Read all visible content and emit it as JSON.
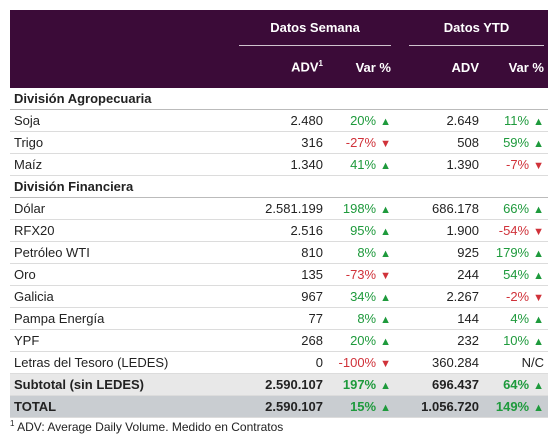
{
  "header": {
    "groups": [
      "Datos Semana",
      "Datos YTD"
    ],
    "columns": [
      {
        "label": "ADV",
        "sup": "1"
      },
      {
        "label": "Var %"
      },
      {
        "label": "ADV"
      },
      {
        "label": "Var %"
      }
    ]
  },
  "sections": [
    {
      "title": "División Agropecuaria",
      "rows": [
        [
          "Soja",
          "2.480",
          {
            "text": "20%",
            "trend": "up"
          },
          "2.649",
          {
            "text": "11%",
            "trend": "up"
          }
        ],
        [
          "Trigo",
          "316",
          {
            "text": "-27%",
            "trend": "down"
          },
          "508",
          {
            "text": "59%",
            "trend": "up"
          }
        ],
        [
          "Maíz",
          "1.340",
          {
            "text": "41%",
            "trend": "up"
          },
          "1.390",
          {
            "text": "-7%",
            "trend": "down"
          }
        ]
      ]
    },
    {
      "title": "División Financiera",
      "rows": [
        [
          "Dólar",
          "2.581.199",
          {
            "text": "198%",
            "trend": "up"
          },
          "686.178",
          {
            "text": "66%",
            "trend": "up"
          }
        ],
        [
          "RFX20",
          "2.516",
          {
            "text": "95%",
            "trend": "up"
          },
          "1.900",
          {
            "text": "-54%",
            "trend": "down"
          }
        ],
        [
          "Petróleo WTI",
          "810",
          {
            "text": "8%",
            "trend": "up"
          },
          "925",
          {
            "text": "179%",
            "trend": "up"
          }
        ],
        [
          "Oro",
          "135",
          {
            "text": "-73%",
            "trend": "down"
          },
          "244",
          {
            "text": "54%",
            "trend": "up"
          }
        ],
        [
          "Galicia",
          "967",
          {
            "text": "34%",
            "trend": "up"
          },
          "2.267",
          {
            "text": "-2%",
            "trend": "down"
          }
        ],
        [
          "Pampa Energía",
          "77",
          {
            "text": "8%",
            "trend": "up"
          },
          "144",
          {
            "text": "4%",
            "trend": "up"
          }
        ],
        [
          "YPF",
          "268",
          {
            "text": "20%",
            "trend": "up"
          },
          "232",
          {
            "text": "10%",
            "trend": "up"
          }
        ],
        [
          "Letras del Tesoro (LEDES)",
          "0",
          {
            "text": "-100%",
            "trend": "down"
          },
          "360.284",
          {
            "text": "N/C"
          }
        ]
      ]
    }
  ],
  "subtotal": [
    "Subtotal (sin LEDES)",
    "2.590.107",
    {
      "text": "197%",
      "trend": "up"
    },
    "696.437",
    {
      "text": "64%",
      "trend": "up"
    }
  ],
  "total": [
    "TOTAL",
    "2.590.107",
    {
      "text": "15%",
      "trend": "up"
    },
    "1.056.720",
    {
      "text": "149%",
      "trend": "up"
    }
  ],
  "footnote": {
    "sup": "1",
    "text": "ADV: Average Daily Volume. Medido en Contratos"
  }
}
